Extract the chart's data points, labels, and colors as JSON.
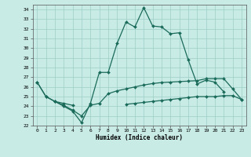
{
  "xlabel": "Humidex (Indice chaleur)",
  "x": [
    0,
    1,
    2,
    3,
    4,
    5,
    6,
    7,
    8,
    9,
    10,
    11,
    12,
    13,
    14,
    15,
    16,
    17,
    18,
    19,
    20,
    21,
    22,
    23
  ],
  "line1": [
    26.5,
    25.0,
    24.5,
    24.0,
    23.5,
    22.3,
    24.3,
    27.5,
    27.5,
    30.5,
    32.7,
    32.2,
    34.2,
    32.3,
    32.2,
    31.5,
    31.6,
    28.8,
    26.3,
    26.7,
    26.5,
    25.5,
    null,
    null
  ],
  "line2": [
    26.5,
    25.0,
    24.5,
    24.1,
    23.6,
    23.0,
    24.1,
    24.3,
    25.3,
    25.6,
    25.8,
    26.0,
    26.2,
    26.35,
    26.45,
    26.5,
    26.55,
    26.6,
    26.65,
    26.85,
    26.85,
    26.85,
    25.8,
    24.7
  ],
  "line3": [
    null,
    null,
    24.5,
    24.3,
    24.1,
    null,
    null,
    null,
    null,
    null,
    24.2,
    24.3,
    24.4,
    24.5,
    24.6,
    24.7,
    24.8,
    24.9,
    25.0,
    25.0,
    25.0,
    25.1,
    25.1,
    24.7
  ],
  "ylim": [
    22,
    34.5
  ],
  "xlim": [
    -0.5,
    23.5
  ],
  "yticks": [
    22,
    23,
    24,
    25,
    26,
    27,
    28,
    29,
    30,
    31,
    32,
    33,
    34
  ],
  "xticks": [
    0,
    1,
    2,
    3,
    4,
    5,
    6,
    7,
    8,
    9,
    10,
    11,
    12,
    13,
    14,
    15,
    16,
    17,
    18,
    19,
    20,
    21,
    22,
    23
  ],
  "line_color": "#1a6b5a",
  "bg_color": "#c8ebe5",
  "grid_color": "#9ecec8",
  "marker": "D",
  "marker_size": 2.0,
  "linewidth": 0.9
}
